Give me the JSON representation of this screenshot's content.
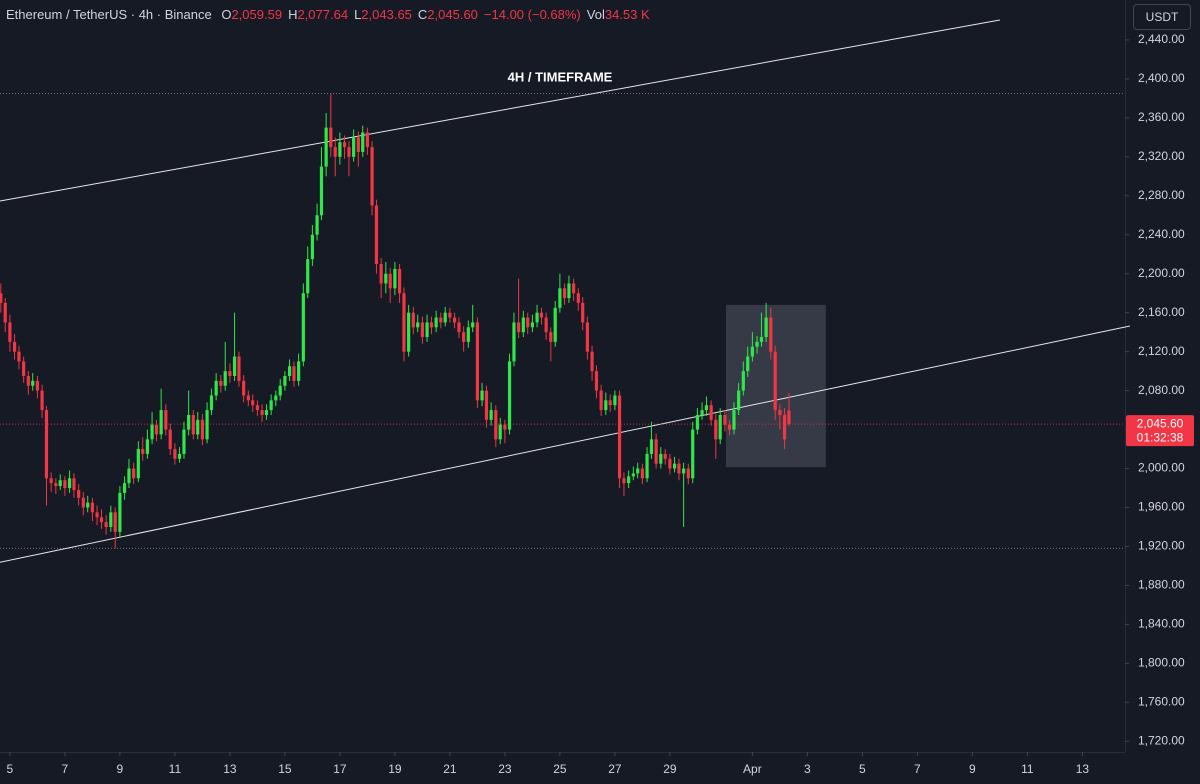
{
  "header": {
    "symbol": "Ethereum / TetherUS · 4h · Binance",
    "o_label": "O",
    "o": "2,059.59",
    "h_label": "H",
    "h": "2,077.64",
    "l_label": "L",
    "l": "2,043.65",
    "c_label": "C",
    "c": "2,045.60",
    "change": "−14.00 (−0.68%)",
    "vol_label": "Vol",
    "vol": "34.53 K"
  },
  "currency": "USDT",
  "chart_data": {
    "type": "candlestick",
    "annotation": "4H / TIMEFRAME",
    "up_color": "#2ee84a",
    "down_color": "#f23645",
    "xlim": [
      4.64,
      45.55
    ],
    "ylim": [
      1709,
      2481
    ],
    "xticks": [
      5,
      7,
      9,
      11,
      13,
      15,
      17,
      19,
      21,
      23,
      25,
      27,
      29,
      {
        "value": 32,
        "label": "Apr"
      },
      {
        "value": 34,
        "label": "3"
      },
      {
        "value": 36,
        "label": "5"
      },
      {
        "value": 38,
        "label": "7"
      },
      {
        "value": 40,
        "label": "9"
      },
      {
        "value": 42,
        "label": "11"
      },
      {
        "value": 44,
        "label": "13"
      }
    ],
    "yticks": [
      {
        "value": 1720,
        "label": "1,720.00"
      },
      {
        "value": 1760,
        "label": "1,760.00"
      },
      {
        "value": 1800,
        "label": "1,800.00"
      },
      {
        "value": 1840,
        "label": "1,840.00"
      },
      {
        "value": 1880,
        "label": "1,880.00"
      },
      {
        "value": 1920,
        "label": "1,920.00"
      },
      {
        "value": 1960,
        "label": "1,960.00"
      },
      {
        "value": 2000,
        "label": "2,000.00"
      },
      {
        "value": 2040,
        "label": "2,040.00"
      },
      {
        "value": 2080,
        "label": "2,080.00"
      },
      {
        "value": 2120,
        "label": "2,120.00"
      },
      {
        "value": 2160,
        "label": "2,160.00"
      },
      {
        "value": 2200,
        "label": "2,200.00"
      },
      {
        "value": 2240,
        "label": "2,240.00"
      },
      {
        "value": 2280,
        "label": "2,280.00"
      },
      {
        "value": 2320,
        "label": "2,320.00"
      },
      {
        "value": 2360,
        "label": "2,360.00"
      },
      {
        "value": 2400,
        "label": "2,400.00"
      },
      {
        "value": 2440,
        "label": "2,440.00"
      }
    ],
    "grid": false,
    "price_label": {
      "value": 2045.6,
      "label": "2,045.60",
      "countdown": "01:32:38"
    },
    "trend_lines": [
      {
        "x": [
          4.64,
          41
        ],
        "y": [
          2274.6,
          2460.5
        ]
      },
      {
        "x": [
          4.64,
          45.73
        ],
        "y": [
          1903.8,
          2146.3
        ]
      }
    ],
    "h_lines": [
      2385,
      1918
    ],
    "box": {
      "x": [
        31.04,
        34.67
      ],
      "y": [
        2001.4,
        2168
      ]
    },
    "candles": [
      [
        4.67,
        2180,
        2190,
        2160,
        2170
      ],
      [
        4.83,
        2170,
        2175,
        2140,
        2150
      ],
      [
        5,
        2150,
        2158,
        2120,
        2130
      ],
      [
        5.17,
        2130,
        2138,
        2112,
        2120
      ],
      [
        5.33,
        2120,
        2126,
        2102,
        2110
      ],
      [
        5.5,
        2110,
        2115,
        2088,
        2095
      ],
      [
        5.67,
        2095,
        2100,
        2076,
        2085
      ],
      [
        5.83,
        2085,
        2098,
        2080,
        2090
      ],
      [
        6,
        2090,
        2095,
        2072,
        2080
      ],
      [
        6.17,
        2080,
        2086,
        2052,
        2060
      ],
      [
        6.33,
        2060,
        2064,
        1962,
        1990
      ],
      [
        6.5,
        1990,
        1996,
        1976,
        1985
      ],
      [
        6.67,
        1985,
        1990,
        1974,
        1982
      ],
      [
        6.83,
        1982,
        1994,
        1978,
        1988
      ],
      [
        7,
        1988,
        1992,
        1972,
        1980
      ],
      [
        7.17,
        1980,
        1998,
        1975,
        1990
      ],
      [
        7.33,
        1990,
        1995,
        1970,
        1978
      ],
      [
        7.5,
        1978,
        1984,
        1962,
        1970
      ],
      [
        7.67,
        1970,
        1976,
        1952,
        1960
      ],
      [
        7.83,
        1960,
        1972,
        1955,
        1965
      ],
      [
        8,
        1965,
        1970,
        1946,
        1955
      ],
      [
        8.17,
        1955,
        1962,
        1942,
        1950
      ],
      [
        8.33,
        1950,
        1958,
        1938,
        1945
      ],
      [
        8.5,
        1945,
        1952,
        1932,
        1940
      ],
      [
        8.67,
        1940,
        1962,
        1935,
        1955
      ],
      [
        8.83,
        1955,
        1960,
        1918,
        1935
      ],
      [
        9,
        1935,
        1982,
        1930,
        1975
      ],
      [
        9.17,
        1975,
        1992,
        1968,
        1985
      ],
      [
        9.33,
        1985,
        2010,
        1980,
        2000
      ],
      [
        9.5,
        2000,
        2006,
        1984,
        1990
      ],
      [
        9.67,
        1990,
        2028,
        1986,
        2020
      ],
      [
        9.83,
        2020,
        2032,
        2008,
        2015
      ],
      [
        10,
        2015,
        2040,
        2010,
        2030
      ],
      [
        10.17,
        2030,
        2058,
        2025,
        2045
      ],
      [
        10.33,
        2045,
        2050,
        2028,
        2035
      ],
      [
        10.5,
        2035,
        2082,
        2030,
        2060
      ],
      [
        10.67,
        2060,
        2066,
        2034,
        2040
      ],
      [
        10.83,
        2040,
        2046,
        2014,
        2020
      ],
      [
        11,
        2020,
        2026,
        2004,
        2010
      ],
      [
        11.17,
        2010,
        2022,
        2006,
        2015
      ],
      [
        11.33,
        2015,
        2048,
        2010,
        2040
      ],
      [
        11.5,
        2040,
        2080,
        2034,
        2055
      ],
      [
        11.67,
        2055,
        2060,
        2030,
        2035
      ],
      [
        11.83,
        2035,
        2058,
        2030,
        2050
      ],
      [
        12,
        2050,
        2056,
        2024,
        2030
      ],
      [
        12.17,
        2030,
        2068,
        2026,
        2060
      ],
      [
        12.33,
        2060,
        2082,
        2055,
        2075
      ],
      [
        12.5,
        2075,
        2098,
        2070,
        2090
      ],
      [
        12.67,
        2090,
        2096,
        2078,
        2085
      ],
      [
        12.83,
        2085,
        2130,
        2080,
        2100
      ],
      [
        13,
        2100,
        2108,
        2088,
        2095
      ],
      [
        13.17,
        2095,
        2160,
        2090,
        2115
      ],
      [
        13.33,
        2115,
        2120,
        2084,
        2090
      ],
      [
        13.5,
        2090,
        2096,
        2068,
        2075
      ],
      [
        13.67,
        2075,
        2080,
        2064,
        2070
      ],
      [
        13.83,
        2070,
        2076,
        2058,
        2065
      ],
      [
        14,
        2065,
        2070,
        2054,
        2060
      ],
      [
        14.17,
        2060,
        2066,
        2048,
        2055
      ],
      [
        14.33,
        2055,
        2066,
        2050,
        2060
      ],
      [
        14.5,
        2060,
        2076,
        2055,
        2070
      ],
      [
        14.67,
        2070,
        2080,
        2064,
        2075
      ],
      [
        14.83,
        2075,
        2092,
        2070,
        2085
      ],
      [
        15,
        2085,
        2100,
        2080,
        2095
      ],
      [
        15.17,
        2095,
        2112,
        2090,
        2105
      ],
      [
        15.33,
        2105,
        2110,
        2084,
        2090
      ],
      [
        15.5,
        2090,
        2118,
        2085,
        2110
      ],
      [
        15.67,
        2110,
        2190,
        2105,
        2180
      ],
      [
        15.83,
        2180,
        2228,
        2175,
        2215
      ],
      [
        16,
        2215,
        2250,
        2208,
        2240
      ],
      [
        16.17,
        2240,
        2272,
        2234,
        2260
      ],
      [
        16.33,
        2260,
        2330,
        2255,
        2310
      ],
      [
        16.5,
        2310,
        2365,
        2300,
        2350
      ],
      [
        16.67,
        2350,
        2385,
        2320,
        2330
      ],
      [
        16.83,
        2330,
        2340,
        2300,
        2320
      ],
      [
        17,
        2320,
        2345,
        2312,
        2335
      ],
      [
        17.17,
        2335,
        2342,
        2318,
        2330
      ],
      [
        17.33,
        2330,
        2336,
        2300,
        2320
      ],
      [
        17.5,
        2320,
        2348,
        2315,
        2340
      ],
      [
        17.67,
        2340,
        2346,
        2310,
        2325
      ],
      [
        17.83,
        2325,
        2352,
        2320,
        2345
      ],
      [
        18,
        2345,
        2350,
        2322,
        2330
      ],
      [
        18.17,
        2330,
        2336,
        2260,
        2270
      ],
      [
        18.33,
        2270,
        2276,
        2200,
        2210
      ],
      [
        18.5,
        2210,
        2216,
        2175,
        2190
      ],
      [
        18.67,
        2190,
        2212,
        2180,
        2200
      ],
      [
        18.83,
        2200,
        2206,
        2170,
        2185
      ],
      [
        19,
        2185,
        2212,
        2178,
        2205
      ],
      [
        19.17,
        2205,
        2210,
        2170,
        2180
      ],
      [
        19.33,
        2180,
        2186,
        2110,
        2120
      ],
      [
        19.5,
        2120,
        2168,
        2115,
        2160
      ],
      [
        19.67,
        2160,
        2166,
        2138,
        2145
      ],
      [
        19.83,
        2145,
        2158,
        2140,
        2150
      ],
      [
        20,
        2150,
        2156,
        2128,
        2135
      ],
      [
        20.17,
        2135,
        2158,
        2130,
        2150
      ],
      [
        20.33,
        2150,
        2156,
        2138,
        2145
      ],
      [
        20.5,
        2145,
        2162,
        2140,
        2155
      ],
      [
        20.67,
        2155,
        2160,
        2144,
        2150
      ],
      [
        20.83,
        2150,
        2166,
        2146,
        2160
      ],
      [
        21,
        2160,
        2165,
        2150,
        2155
      ],
      [
        21.17,
        2155,
        2160,
        2144,
        2150
      ],
      [
        21.33,
        2150,
        2155,
        2134,
        2140
      ],
      [
        21.5,
        2140,
        2146,
        2120,
        2130
      ],
      [
        21.67,
        2130,
        2152,
        2124,
        2145
      ],
      [
        21.83,
        2145,
        2168,
        2140,
        2150
      ],
      [
        22,
        2150,
        2155,
        2062,
        2070
      ],
      [
        22.17,
        2070,
        2088,
        2064,
        2080
      ],
      [
        22.33,
        2080,
        2085,
        2042,
        2050
      ],
      [
        22.5,
        2050,
        2068,
        2044,
        2060
      ],
      [
        22.67,
        2060,
        2065,
        2022,
        2030
      ],
      [
        22.83,
        2030,
        2052,
        2025,
        2045
      ],
      [
        23,
        2045,
        2050,
        2026,
        2040
      ],
      [
        23.17,
        2040,
        2118,
        2035,
        2110
      ],
      [
        23.33,
        2110,
        2160,
        2105,
        2150
      ],
      [
        23.5,
        2150,
        2195,
        2134,
        2140
      ],
      [
        23.67,
        2140,
        2162,
        2135,
        2155
      ],
      [
        23.83,
        2155,
        2160,
        2138,
        2145
      ],
      [
        24,
        2145,
        2158,
        2140,
        2150
      ],
      [
        24.17,
        2150,
        2168,
        2145,
        2160
      ],
      [
        24.33,
        2160,
        2165,
        2148,
        2155
      ],
      [
        24.5,
        2155,
        2160,
        2132,
        2140
      ],
      [
        24.67,
        2140,
        2145,
        2110,
        2130
      ],
      [
        24.83,
        2130,
        2172,
        2125,
        2165
      ],
      [
        25,
        2165,
        2200,
        2160,
        2185
      ],
      [
        25.17,
        2185,
        2190,
        2168,
        2175
      ],
      [
        25.33,
        2175,
        2198,
        2170,
        2190
      ],
      [
        25.5,
        2190,
        2195,
        2172,
        2180
      ],
      [
        25.67,
        2180,
        2185,
        2162,
        2170
      ],
      [
        25.83,
        2170,
        2176,
        2142,
        2150
      ],
      [
        26,
        2150,
        2156,
        2112,
        2120
      ],
      [
        26.17,
        2120,
        2126,
        2090,
        2100
      ],
      [
        26.33,
        2100,
        2106,
        2072,
        2080
      ],
      [
        26.5,
        2080,
        2086,
        2054,
        2060
      ],
      [
        26.67,
        2060,
        2078,
        2055,
        2070
      ],
      [
        26.83,
        2070,
        2076,
        2058,
        2065
      ],
      [
        27,
        2065,
        2080,
        2060,
        2075
      ],
      [
        27.17,
        2075,
        2080,
        1980,
        1990
      ],
      [
        27.33,
        1990,
        1996,
        1972,
        1985
      ],
      [
        27.5,
        1985,
        1998,
        1980,
        1992
      ],
      [
        27.67,
        1992,
        2002,
        1988,
        1995
      ],
      [
        27.83,
        1995,
        2006,
        1990,
        2000
      ],
      [
        28,
        2000,
        2005,
        1984,
        1990
      ],
      [
        28.17,
        1990,
        2022,
        1986,
        2015
      ],
      [
        28.33,
        2015,
        2048,
        2010,
        2030
      ],
      [
        28.5,
        2030,
        2036,
        2000,
        2005
      ],
      [
        28.67,
        2005,
        2022,
        2000,
        2015
      ],
      [
        28.83,
        2015,
        2020,
        2004,
        2010
      ],
      [
        29,
        2010,
        2015,
        1994,
        2000
      ],
      [
        29.17,
        2000,
        2012,
        1996,
        2005
      ],
      [
        29.33,
        2005,
        2010,
        1988,
        1995
      ],
      [
        29.5,
        1995,
        2006,
        1940,
        2000
      ],
      [
        29.67,
        2000,
        2005,
        1984,
        1990
      ],
      [
        29.83,
        1990,
        2048,
        1985,
        2040
      ],
      [
        30,
        2040,
        2062,
        2035,
        2055
      ],
      [
        30.17,
        2055,
        2068,
        2050,
        2060
      ],
      [
        30.33,
        2060,
        2074,
        2054,
        2065
      ],
      [
        30.5,
        2065,
        2070,
        2044,
        2050
      ],
      [
        30.67,
        2050,
        2056,
        2010,
        2030
      ],
      [
        30.83,
        2030,
        2062,
        2025,
        2055
      ],
      [
        31,
        2055,
        2060,
        2038,
        2045
      ],
      [
        31.17,
        2045,
        2050,
        2034,
        2040
      ],
      [
        31.33,
        2040,
        2068,
        2035,
        2060
      ],
      [
        31.5,
        2060,
        2088,
        2055,
        2080
      ],
      [
        31.67,
        2080,
        2110,
        2075,
        2100
      ],
      [
        31.83,
        2100,
        2125,
        2094,
        2115
      ],
      [
        32,
        2115,
        2140,
        2110,
        2125
      ],
      [
        32.17,
        2125,
        2136,
        2118,
        2130
      ],
      [
        32.33,
        2130,
        2160,
        2125,
        2135
      ],
      [
        32.5,
        2135,
        2170,
        2130,
        2155
      ],
      [
        32.67,
        2155,
        2165,
        2112,
        2120
      ],
      [
        32.83,
        2120,
        2126,
        2050,
        2060
      ],
      [
        33,
        2060,
        2066,
        2040,
        2055
      ],
      [
        33.17,
        2055,
        2062,
        2020,
        2030
      ],
      [
        33.33,
        2059.59,
        2077.64,
        2043.65,
        2045.6
      ]
    ]
  }
}
